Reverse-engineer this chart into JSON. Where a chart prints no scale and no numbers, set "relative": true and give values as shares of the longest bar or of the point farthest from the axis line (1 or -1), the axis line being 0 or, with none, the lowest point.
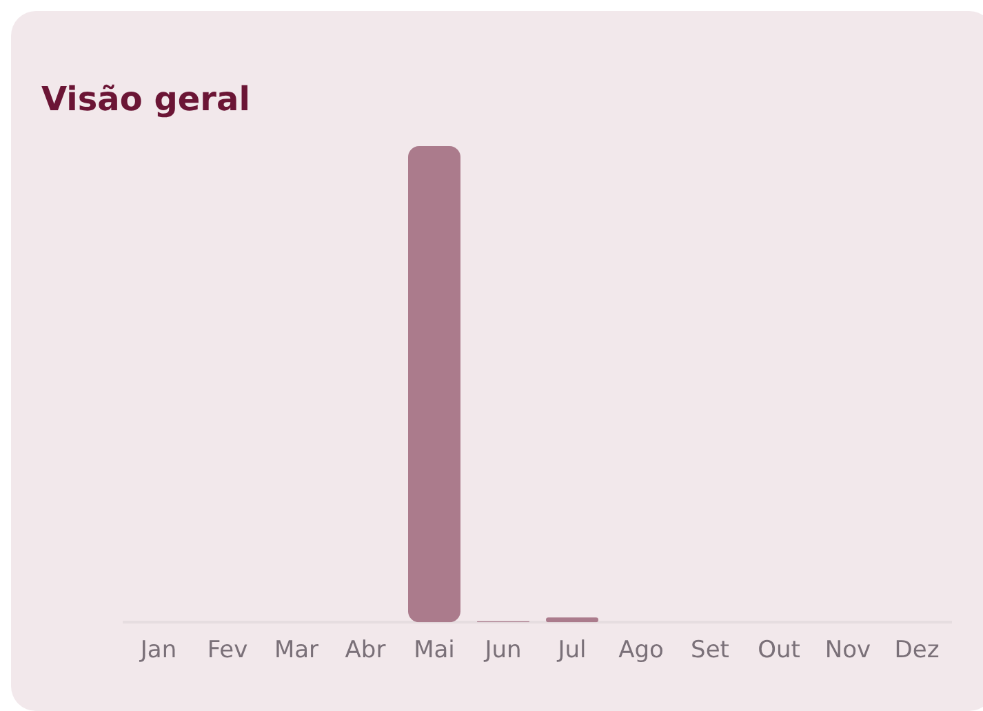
{
  "chart_data": {
    "type": "bar",
    "title": "Visão geral",
    "relative": true,
    "color": "#ab7b8c",
    "categories": [
      "Jan",
      "Fev",
      "Mar",
      "Abr",
      "Mai",
      "Jun",
      "Jul",
      "Ago",
      "Set",
      "Out",
      "Nov",
      "Dez"
    ],
    "values": [
      0,
      0,
      0,
      0,
      1,
      0.002,
      0.01,
      0,
      0,
      0,
      0,
      0
    ]
  }
}
